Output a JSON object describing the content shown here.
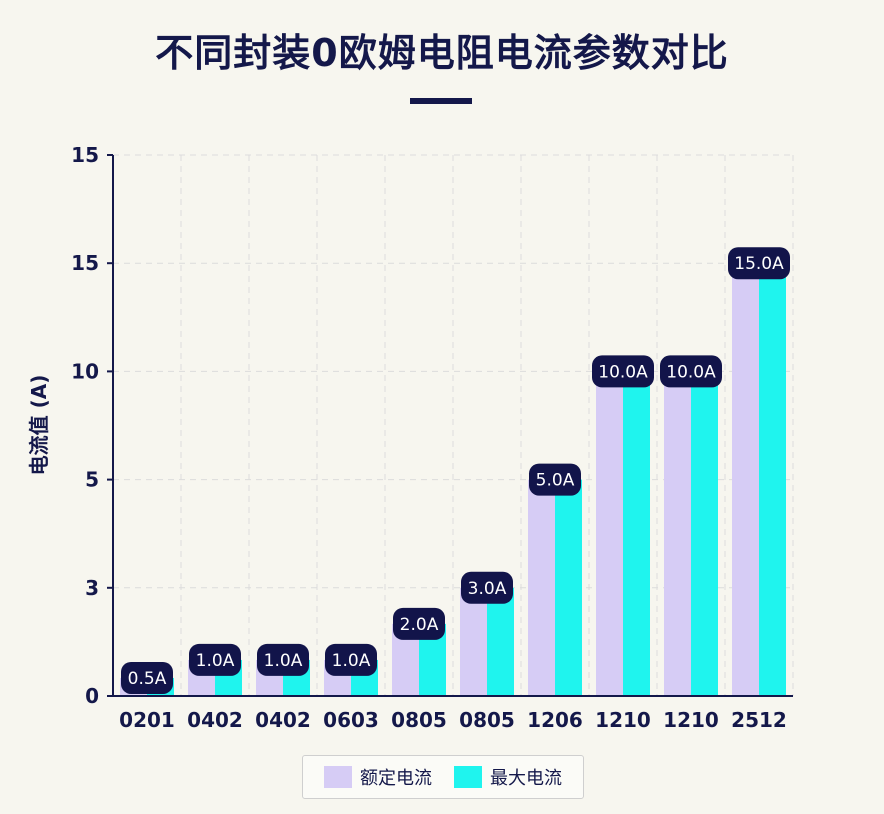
{
  "title": "不同封装0欧姆电阻电流参数对比",
  "colors": {
    "rated": "#d6ccf5",
    "max": "#1ff4ee",
    "label_bg": "#12144a",
    "axis": "#14184a",
    "grid": "#dcdcdc"
  },
  "chart_data": {
    "type": "bar",
    "title": "不同封装0欧姆电阻电流参数对比",
    "ylabel": "电流值 (A)",
    "xlabel": "",
    "y_tick_labels": [
      "0",
      "3",
      "5",
      "10",
      "15",
      "15"
    ],
    "categories": [
      "0201",
      "0402",
      "0402",
      "0603",
      "0805",
      "0805",
      "1206",
      "1210",
      "1210",
      "2512"
    ],
    "series": [
      {
        "name": "额定电流",
        "values": [
          0.5,
          1.0,
          1.0,
          1.0,
          2.0,
          3.0,
          5.0,
          10.0,
          10.0,
          15.0
        ]
      },
      {
        "name": "最大电流",
        "values": [
          0.5,
          1.0,
          1.0,
          1.0,
          2.0,
          3.0,
          5.0,
          10.0,
          10.0,
          15.0
        ]
      }
    ],
    "data_labels": [
      "0.5A",
      "1.0A",
      "1.0A",
      "1.0A",
      "2.0A",
      "3.0A",
      "5.0A",
      "10.0A",
      "10.0A",
      "15.0A"
    ],
    "grid": true,
    "legend_position": "bottom-center"
  }
}
